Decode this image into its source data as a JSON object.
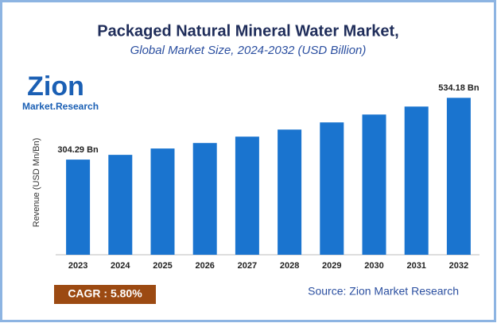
{
  "chart_data": {
    "type": "bar",
    "title": "Packaged Natural Mineral Water Market,",
    "subtitle": "Global Market Size, 2024-2032 (USD Billion)",
    "y_label": "Revenue (USD Mn/Bn)",
    "categories": [
      "2023",
      "2024",
      "2025",
      "2026",
      "2027",
      "2028",
      "2029",
      "2030",
      "2031",
      "2032"
    ],
    "values": [
      304.29,
      321.9,
      345.5,
      366,
      389.7,
      416,
      442.7,
      472,
      501.7,
      534.18
    ],
    "value_labels": [
      "304.29 Bn",
      null,
      null,
      null,
      null,
      null,
      null,
      null,
      null,
      "534.18 Bn"
    ],
    "color": "#1a74cf",
    "ylim": [
      -50,
      600
    ],
    "grid": false,
    "logo": {
      "name": "Zion",
      "tagline": "Market.Research"
    },
    "cagr": "CAGR :  5.80%",
    "source": "Source: Zion Market Research"
  }
}
